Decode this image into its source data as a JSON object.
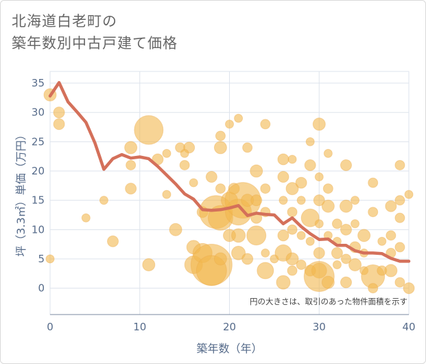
{
  "title_line1": "北海道白老町の",
  "title_line2": "築年数別中古戸建て価格",
  "chart_data": {
    "type": "scatter",
    "xlabel": "築年数（年）",
    "ylabel": "坪（3.3㎡）単価（万円）",
    "xlim": [
      0,
      40
    ],
    "ylim": [
      -4.5,
      37
    ],
    "x_ticks": [
      0,
      10,
      20,
      30,
      40
    ],
    "y_ticks": [
      0,
      5,
      10,
      15,
      20,
      25,
      30,
      35
    ],
    "grid": true,
    "annotation": "円の大きさは、取引のあった物件面積を示す",
    "colors": {
      "bubble": "#f2b84e",
      "line": "#d4705a",
      "grid": "#dde3ec",
      "text": "#566b8a"
    },
    "trend_line": {
      "x": [
        0,
        1,
        2,
        3,
        4,
        5,
        6,
        7,
        8,
        9,
        10,
        11,
        12,
        13,
        14,
        15,
        16,
        17,
        18,
        19,
        20,
        21,
        22,
        23,
        24,
        25,
        26,
        27,
        28,
        29,
        30,
        31,
        32,
        33,
        34,
        35,
        36,
        37,
        38,
        39,
        40
      ],
      "y": [
        32.8,
        35.1,
        31.8,
        30.1,
        28.3,
        24.8,
        20.3,
        22.1,
        22.8,
        22.2,
        22.4,
        22.1,
        20.8,
        19.3,
        17.8,
        16.1,
        15.2,
        13.4,
        13.3,
        13.4,
        13.7,
        14.1,
        12.4,
        12.8,
        12.6,
        12.5,
        11.0,
        12.0,
        10.5,
        9.3,
        8.3,
        8.4,
        7.3,
        7.3,
        6.4,
        6.0,
        6.0,
        5.9,
        5.1,
        4.6,
        4.6
      ]
    },
    "bubbles": [
      {
        "x": 0,
        "y": 33,
        "s": 9
      },
      {
        "x": 1,
        "y": 30,
        "s": 8
      },
      {
        "x": 1,
        "y": 28,
        "s": 8
      },
      {
        "x": 0,
        "y": 5,
        "s": 6
      },
      {
        "x": 4,
        "y": 12,
        "s": 6
      },
      {
        "x": 6,
        "y": 15,
        "s": 6
      },
      {
        "x": 7,
        "y": 8,
        "s": 8
      },
      {
        "x": 9,
        "y": 24,
        "s": 9
      },
      {
        "x": 9,
        "y": 21,
        "s": 7
      },
      {
        "x": 9,
        "y": 17,
        "s": 8
      },
      {
        "x": 11,
        "y": 27,
        "s": 21
      },
      {
        "x": 11,
        "y": 4,
        "s": 9
      },
      {
        "x": 12,
        "y": 22,
        "s": 8
      },
      {
        "x": 13,
        "y": 23,
        "s": 6
      },
      {
        "x": 13,
        "y": 16,
        "s": 6
      },
      {
        "x": 14,
        "y": 10,
        "s": 9
      },
      {
        "x": 14.5,
        "y": 24,
        "s": 7
      },
      {
        "x": 15.5,
        "y": 24,
        "s": 8
      },
      {
        "x": 15,
        "y": 21,
        "s": 7
      },
      {
        "x": 15,
        "y": 23,
        "s": 6
      },
      {
        "x": 16,
        "y": 7,
        "s": 10
      },
      {
        "x": 16,
        "y": 4,
        "s": 13
      },
      {
        "x": 16,
        "y": 18,
        "s": 6
      },
      {
        "x": 17,
        "y": 13,
        "s": 8
      },
      {
        "x": 17,
        "y": 6,
        "s": 14
      },
      {
        "x": 18,
        "y": 4,
        "s": 30
      },
      {
        "x": 18,
        "y": 3,
        "s": 22
      },
      {
        "x": 18,
        "y": 19,
        "s": 8
      },
      {
        "x": 18.5,
        "y": 13,
        "s": 24
      },
      {
        "x": 19,
        "y": 12,
        "s": 18
      },
      {
        "x": 19,
        "y": 17,
        "s": 7
      },
      {
        "x": 19,
        "y": 24,
        "s": 9
      },
      {
        "x": 19,
        "y": 26,
        "s": 7
      },
      {
        "x": 19,
        "y": 5,
        "s": 9
      },
      {
        "x": 20,
        "y": 15,
        "s": 12
      },
      {
        "x": 20,
        "y": 9,
        "s": 9
      },
      {
        "x": 20,
        "y": 28,
        "s": 6
      },
      {
        "x": 20.5,
        "y": 17,
        "s": 8
      },
      {
        "x": 21,
        "y": 29,
        "s": 6
      },
      {
        "x": 21,
        "y": 13,
        "s": 19
      },
      {
        "x": 21,
        "y": 9,
        "s": 10
      },
      {
        "x": 21,
        "y": 6,
        "s": 10
      },
      {
        "x": 21.5,
        "y": 15,
        "s": 26
      },
      {
        "x": 22,
        "y": 5,
        "s": 8
      },
      {
        "x": 22,
        "y": 24,
        "s": 7
      },
      {
        "x": 22,
        "y": 15,
        "s": 9
      },
      {
        "x": 23,
        "y": 20,
        "s": 9
      },
      {
        "x": 23,
        "y": 15,
        "s": 8
      },
      {
        "x": 23,
        "y": 9,
        "s": 14
      },
      {
        "x": 23,
        "y": 12,
        "s": 8
      },
      {
        "x": 24,
        "y": 28,
        "s": 7
      },
      {
        "x": 24,
        "y": 17,
        "s": 7
      },
      {
        "x": 24,
        "y": 13,
        "s": 7
      },
      {
        "x": 24,
        "y": 6,
        "s": 6
      },
      {
        "x": 24,
        "y": 3,
        "s": 12
      },
      {
        "x": 25,
        "y": 5,
        "s": 6
      },
      {
        "x": 26,
        "y": 22,
        "s": 8
      },
      {
        "x": 26,
        "y": 19,
        "s": 8
      },
      {
        "x": 26,
        "y": 15,
        "s": 6
      },
      {
        "x": 26,
        "y": 9,
        "s": 8
      },
      {
        "x": 26,
        "y": 6,
        "s": 12
      },
      {
        "x": 26,
        "y": 1,
        "s": 10
      },
      {
        "x": 27,
        "y": 22,
        "s": 6
      },
      {
        "x": 27,
        "y": 17,
        "s": 9
      },
      {
        "x": 27,
        "y": 13,
        "s": 7
      },
      {
        "x": 27,
        "y": 10,
        "s": 7
      },
      {
        "x": 27,
        "y": 5,
        "s": 9
      },
      {
        "x": 27,
        "y": 3,
        "s": 7
      },
      {
        "x": 28,
        "y": 18,
        "s": 8
      },
      {
        "x": 28,
        "y": 15,
        "s": 6
      },
      {
        "x": 28,
        "y": 9,
        "s": 6
      },
      {
        "x": 28,
        "y": 4,
        "s": 7
      },
      {
        "x": 29,
        "y": 25,
        "s": 6
      },
      {
        "x": 29,
        "y": 21,
        "s": 8
      },
      {
        "x": 29,
        "y": 12,
        "s": 13
      },
      {
        "x": 29,
        "y": 8,
        "s": 6
      },
      {
        "x": 29,
        "y": 3,
        "s": 8
      },
      {
        "x": 30,
        "y": 28,
        "s": 9
      },
      {
        "x": 30,
        "y": 19,
        "s": 6
      },
      {
        "x": 30,
        "y": 15,
        "s": 8
      },
      {
        "x": 30,
        "y": 11,
        "s": 6
      },
      {
        "x": 30,
        "y": 6,
        "s": 8
      },
      {
        "x": 30,
        "y": 3,
        "s": 11
      },
      {
        "x": 30,
        "y": 2,
        "s": 22
      },
      {
        "x": 31,
        "y": 23,
        "s": 6
      },
      {
        "x": 31,
        "y": 17,
        "s": 7
      },
      {
        "x": 31,
        "y": 14,
        "s": 9
      },
      {
        "x": 31,
        "y": 9,
        "s": 6
      },
      {
        "x": 31,
        "y": 1,
        "s": 9
      },
      {
        "x": 32,
        "y": 11,
        "s": 7
      },
      {
        "x": 32,
        "y": 8,
        "s": 6
      },
      {
        "x": 32,
        "y": 6,
        "s": 8
      },
      {
        "x": 32,
        "y": 4,
        "s": 6
      },
      {
        "x": 33,
        "y": 21,
        "s": 8
      },
      {
        "x": 33,
        "y": 14,
        "s": 9
      },
      {
        "x": 33,
        "y": 10,
        "s": 8
      },
      {
        "x": 33,
        "y": 5,
        "s": 7
      },
      {
        "x": 33,
        "y": 1,
        "s": 8
      },
      {
        "x": 34,
        "y": 15,
        "s": 6
      },
      {
        "x": 34,
        "y": 11,
        "s": 6
      },
      {
        "x": 34,
        "y": 7,
        "s": 8
      },
      {
        "x": 34,
        "y": 4,
        "s": 9
      },
      {
        "x": 35,
        "y": 9,
        "s": 9
      },
      {
        "x": 35,
        "y": 6,
        "s": 6
      },
      {
        "x": 35,
        "y": 3,
        "s": 6
      },
      {
        "x": 36,
        "y": 18,
        "s": 7
      },
      {
        "x": 36,
        "y": 13,
        "s": 7
      },
      {
        "x": 36,
        "y": 2,
        "s": 17
      },
      {
        "x": 36,
        "y": 0,
        "s": 7
      },
      {
        "x": 37,
        "y": 8,
        "s": 6
      },
      {
        "x": 37,
        "y": 3,
        "s": 7
      },
      {
        "x": 38,
        "y": 14,
        "s": 8
      },
      {
        "x": 38,
        "y": 9,
        "s": 7
      },
      {
        "x": 38,
        "y": 6,
        "s": 7
      },
      {
        "x": 38,
        "y": 3,
        "s": 9
      },
      {
        "x": 39,
        "y": 21,
        "s": 7
      },
      {
        "x": 39,
        "y": 15,
        "s": 7
      },
      {
        "x": 39,
        "y": 12,
        "s": 7
      },
      {
        "x": 39,
        "y": 7,
        "s": 7
      },
      {
        "x": 39,
        "y": 1,
        "s": 7
      },
      {
        "x": 40,
        "y": 16,
        "s": 6
      },
      {
        "x": 40,
        "y": 0,
        "s": 8
      }
    ]
  }
}
